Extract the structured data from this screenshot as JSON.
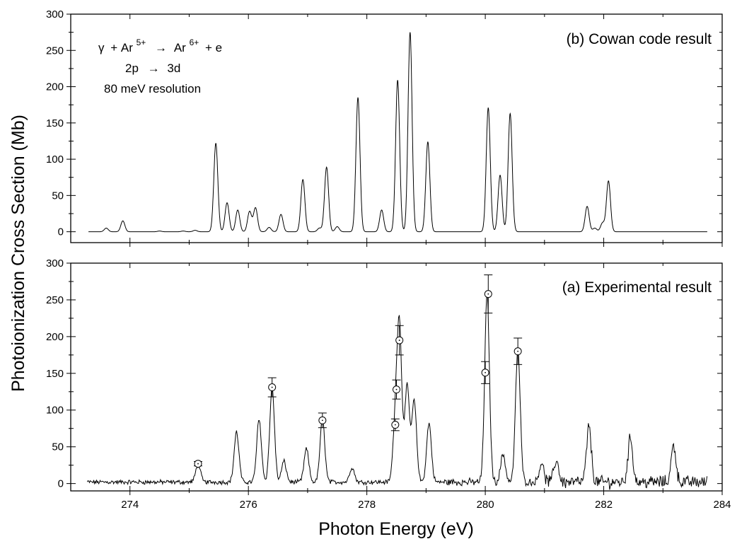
{
  "chart_data": [
    {
      "type": "line",
      "panel": "(b)",
      "title": "(b) Cowan code result",
      "annotation": {
        "line1": {
          "gamma": "γ",
          "plus": "+ Ar",
          "ion": "5+",
          "arrow": "→",
          "product": "Ar",
          "product_charge": "6+",
          "tail": "+ e"
        },
        "line2": {
          "from": "2p",
          "arrow": "→",
          "to": "3d"
        },
        "line3": "80 meV resolution"
      },
      "xlim": [
        273,
        284
      ],
      "ylim": [
        -15,
        300
      ],
      "yticks": [
        "0",
        "50",
        "100",
        "150",
        "200",
        "250",
        "300"
      ],
      "grid": false,
      "baseline": 0,
      "peaks": [
        {
          "x": 273.6,
          "y": 5
        },
        {
          "x": 273.88,
          "y": 15
        },
        {
          "x": 274.5,
          "y": 1
        },
        {
          "x": 274.9,
          "y": 1
        },
        {
          "x": 275.1,
          "y": 2
        },
        {
          "x": 275.45,
          "y": 122
        },
        {
          "x": 275.64,
          "y": 40
        },
        {
          "x": 275.82,
          "y": 30
        },
        {
          "x": 276.02,
          "y": 28
        },
        {
          "x": 276.12,
          "y": 33
        },
        {
          "x": 276.35,
          "y": 6
        },
        {
          "x": 276.55,
          "y": 24
        },
        {
          "x": 276.92,
          "y": 72
        },
        {
          "x": 277.2,
          "y": 5
        },
        {
          "x": 277.32,
          "y": 89
        },
        {
          "x": 277.5,
          "y": 7
        },
        {
          "x": 277.85,
          "y": 185
        },
        {
          "x": 278.25,
          "y": 30
        },
        {
          "x": 278.52,
          "y": 209
        },
        {
          "x": 278.73,
          "y": 275
        },
        {
          "x": 279.03,
          "y": 124
        },
        {
          "x": 280.05,
          "y": 171
        },
        {
          "x": 280.25,
          "y": 78
        },
        {
          "x": 280.42,
          "y": 163
        },
        {
          "x": 281.72,
          "y": 35
        },
        {
          "x": 281.85,
          "y": 5
        },
        {
          "x": 281.98,
          "y": 12
        },
        {
          "x": 282.08,
          "y": 70
        }
      ]
    },
    {
      "type": "line",
      "panel": "(a)",
      "title": "(a) Experimental result",
      "xlabel": "Photon Energy (eV)",
      "ylabel": "Photoionization Cross Section (Mb)",
      "xlim": [
        273,
        284
      ],
      "ylim": [
        -10,
        300
      ],
      "xticks": [
        "274",
        "276",
        "278",
        "280",
        "282",
        "284"
      ],
      "yticks": [
        "0",
        "50",
        "100",
        "150",
        "200",
        "250",
        "300"
      ],
      "grid": false,
      "baseline": 2,
      "noise": "random fluctuations about the baseline, larger above 281 eV",
      "peaks": [
        {
          "x": 275.15,
          "y": 24
        },
        {
          "x": 275.8,
          "y": 68
        },
        {
          "x": 276.18,
          "y": 85
        },
        {
          "x": 276.4,
          "y": 128
        },
        {
          "x": 276.6,
          "y": 28
        },
        {
          "x": 276.98,
          "y": 45
        },
        {
          "x": 277.25,
          "y": 86
        },
        {
          "x": 277.75,
          "y": 20
        },
        {
          "x": 278.48,
          "y": 75
        },
        {
          "x": 278.55,
          "y": 210
        },
        {
          "x": 278.68,
          "y": 130
        },
        {
          "x": 278.8,
          "y": 110
        },
        {
          "x": 279.05,
          "y": 80
        },
        {
          "x": 280.03,
          "y": 255
        },
        {
          "x": 280.3,
          "y": 38
        },
        {
          "x": 280.55,
          "y": 180
        },
        {
          "x": 280.95,
          "y": 26
        },
        {
          "x": 281.2,
          "y": 30
        },
        {
          "x": 281.75,
          "y": 75
        },
        {
          "x": 282.45,
          "y": 60
        },
        {
          "x": 283.18,
          "y": 50
        }
      ],
      "data_points": [
        {
          "x": 275.15,
          "y": 27,
          "err": 3
        },
        {
          "x": 276.4,
          "y": 131,
          "err": 13
        },
        {
          "x": 277.25,
          "y": 86,
          "err": 10
        },
        {
          "x": 278.48,
          "y": 80,
          "err": 8
        },
        {
          "x": 278.5,
          "y": 128,
          "err": 13
        },
        {
          "x": 278.55,
          "y": 195,
          "err": 20
        },
        {
          "x": 280.0,
          "y": 151,
          "err": 15
        },
        {
          "x": 280.05,
          "y": 258,
          "err": 26
        },
        {
          "x": 280.55,
          "y": 180,
          "err": 18
        }
      ]
    }
  ]
}
